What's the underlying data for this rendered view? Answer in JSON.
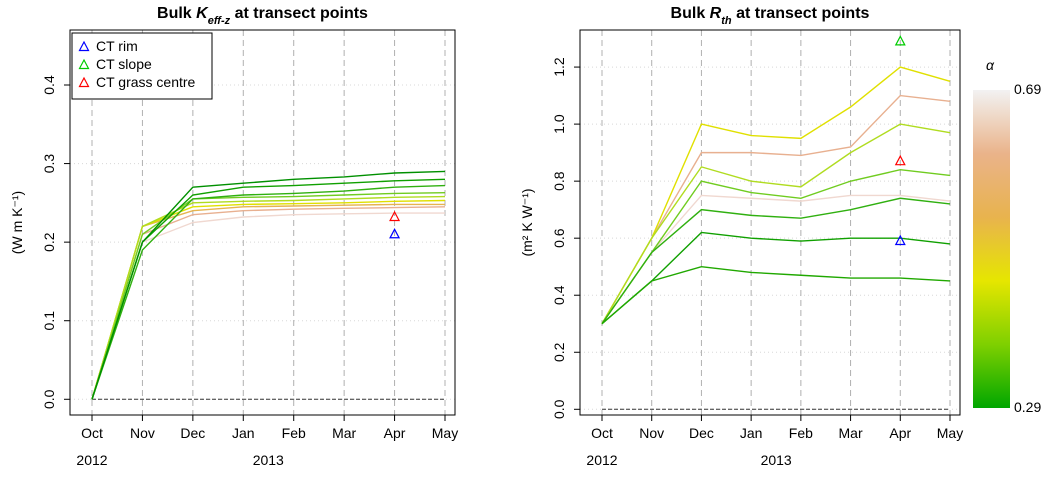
{
  "chart_data": [
    {
      "type": "line",
      "title_parts": [
        "Bulk ",
        "K",
        "eff-z",
        " at transect points"
      ],
      "y_label": "(W m K⁻¹)",
      "x": [
        "2012-10",
        "2012-11",
        "2012-12",
        "2013-01",
        "2013-02",
        "2013-03",
        "2013-04",
        "2013-05"
      ],
      "xlim": [
        "2012-10",
        "2013-05"
      ],
      "xticks": [
        {
          "value": "2012-10",
          "label": "Oct"
        },
        {
          "value": "2012-11",
          "label": "Nov"
        },
        {
          "value": "2012-12",
          "label": "Dec"
        },
        {
          "value": "2013-01",
          "label": "Jan"
        },
        {
          "value": "2013-02",
          "label": "Feb"
        },
        {
          "value": "2013-03",
          "label": "Mar"
        },
        {
          "value": "2013-04",
          "label": "Apr"
        },
        {
          "value": "2013-05",
          "label": "May"
        }
      ],
      "year_labels": [
        {
          "value": "2012-10",
          "label": "2012"
        },
        {
          "value": "2013-01",
          "label": "2013"
        }
      ],
      "ylim": [
        -0.02,
        0.47
      ],
      "yticks": [
        {
          "value": 0,
          "label": "0.0"
        },
        0.1,
        0.2,
        0.3,
        0.4
      ],
      "hline": 0,
      "grid": true,
      "series": [
        {
          "color": "#f0d8d0",
          "values": [
            0,
            0.2,
            0.225,
            0.232,
            0.235,
            0.236,
            0.237,
            0.237
          ]
        },
        {
          "color": "#e8b090",
          "values": [
            0,
            0.21,
            0.235,
            0.24,
            0.242,
            0.243,
            0.244,
            0.245
          ]
        },
        {
          "color": "#e6b450",
          "values": [
            0,
            0.22,
            0.24,
            0.245,
            0.246,
            0.247,
            0.248,
            0.248
          ]
        },
        {
          "color": "#e0e000",
          "values": [
            0,
            0.22,
            0.245,
            0.248,
            0.249,
            0.25,
            0.252,
            0.253
          ]
        },
        {
          "color": "#b0dc20",
          "values": [
            0,
            0.22,
            0.25,
            0.252,
            0.253,
            0.255,
            0.257,
            0.258
          ]
        },
        {
          "color": "#70cc20",
          "values": [
            0,
            0.21,
            0.255,
            0.257,
            0.258,
            0.26,
            0.262,
            0.263
          ]
        },
        {
          "color": "#30b010",
          "values": [
            0,
            0.19,
            0.255,
            0.26,
            0.262,
            0.265,
            0.27,
            0.272
          ]
        },
        {
          "color": "#10a000",
          "values": [
            0,
            0.2,
            0.26,
            0.27,
            0.272,
            0.275,
            0.278,
            0.28
          ]
        },
        {
          "color": "#009000",
          "values": [
            0,
            0.2,
            0.27,
            0.275,
            0.28,
            0.283,
            0.288,
            0.29
          ]
        }
      ],
      "points": [
        {
          "name": "CT rim",
          "color": "#0000ff",
          "x": "2013-04",
          "y": 0.21
        },
        {
          "name": "CT slope",
          "color": "#00cc00"
        },
        {
          "name": "CT grass centre",
          "color": "#ff0000",
          "x": "2013-04",
          "y": 0.232
        }
      ],
      "legend": "top-left"
    },
    {
      "type": "line",
      "title_parts": [
        "Bulk ",
        "R",
        "th",
        " at transect points"
      ],
      "y_label": "(m² K W⁻¹)",
      "x": [
        "2012-10",
        "2012-11",
        "2012-12",
        "2013-01",
        "2013-02",
        "2013-03",
        "2013-04",
        "2013-05"
      ],
      "xlim": [
        "2012-10",
        "2013-05"
      ],
      "xticks": [
        {
          "value": "2012-10",
          "label": "Oct"
        },
        {
          "value": "2012-11",
          "label": "Nov"
        },
        {
          "value": "2012-12",
          "label": "Dec"
        },
        {
          "value": "2013-01",
          "label": "Jan"
        },
        {
          "value": "2013-02",
          "label": "Feb"
        },
        {
          "value": "2013-03",
          "label": "Mar"
        },
        {
          "value": "2013-04",
          "label": "Apr"
        },
        {
          "value": "2013-05",
          "label": "May"
        }
      ],
      "year_labels": [
        {
          "value": "2012-10",
          "label": "2012"
        },
        {
          "value": "2013-01",
          "label": "2013"
        }
      ],
      "ylim": [
        -0.02,
        1.33
      ],
      "yticks": [
        {
          "value": 0,
          "label": "0.0"
        },
        0.2,
        0.4,
        0.6,
        0.8,
        {
          "value": 1,
          "label": "1.0"
        },
        1.2
      ],
      "hline": 0,
      "grid": true,
      "series": [
        {
          "color": "#f0d8d0",
          "values": [
            0.3,
            0.55,
            0.75,
            0.74,
            0.73,
            0.75,
            0.75,
            0.73
          ]
        },
        {
          "color": "#e8b090",
          "values": [
            0.3,
            0.6,
            0.9,
            0.9,
            0.89,
            0.92,
            1.1,
            1.08
          ]
        },
        {
          "color": "#e0e000",
          "values": [
            0.3,
            0.6,
            1.0,
            0.96,
            0.95,
            1.06,
            1.2,
            1.15
          ]
        },
        {
          "color": "#b0dc20",
          "values": [
            0.3,
            0.6,
            0.85,
            0.8,
            0.78,
            0.9,
            1.0,
            0.97
          ]
        },
        {
          "color": "#70cc20",
          "values": [
            0.3,
            0.55,
            0.8,
            0.76,
            0.74,
            0.8,
            0.84,
            0.82
          ]
        },
        {
          "color": "#30b010",
          "values": [
            0.3,
            0.55,
            0.7,
            0.68,
            0.67,
            0.7,
            0.74,
            0.72
          ]
        },
        {
          "color": "#10a000",
          "values": [
            0.3,
            0.45,
            0.62,
            0.6,
            0.59,
            0.6,
            0.6,
            0.58
          ]
        },
        {
          "color": "#20a800",
          "values": [
            0.3,
            0.45,
            0.5,
            0.48,
            0.47,
            0.46,
            0.46,
            0.45
          ]
        }
      ],
      "points": [
        {
          "name": "CT rim",
          "color": "#0000ff",
          "x": "2013-04",
          "y": 0.59
        },
        {
          "name": "CT slope",
          "color": "#00cc00",
          "x": "2013-04",
          "y": 1.29
        },
        {
          "name": "CT grass centre",
          "color": "#ff0000",
          "x": "2013-04",
          "y": 0.87
        }
      ],
      "colorbar": {
        "label": "α",
        "ticks": [
          0.29,
          0.69
        ],
        "colors": [
          "#00a600",
          "#7fd000",
          "#e6e600",
          "#e8b34e",
          "#eab38a",
          "#f2f2f2"
        ]
      }
    }
  ]
}
